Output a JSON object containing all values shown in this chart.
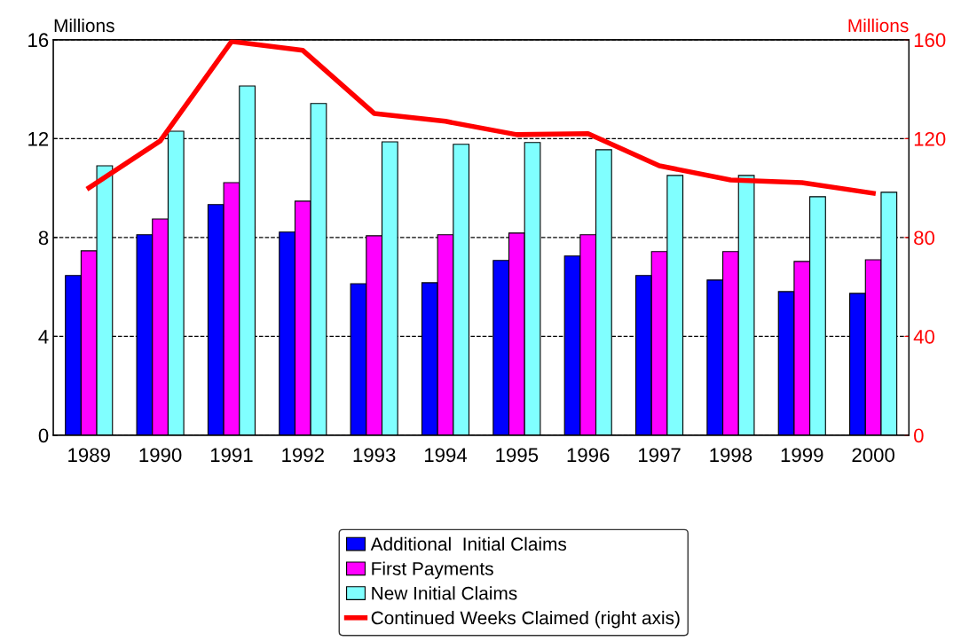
{
  "chart_data": {
    "type": "bar",
    "ylabel": "Millions",
    "y2label": "Millions",
    "categories": [
      "1989",
      "1990",
      "1991",
      "1992",
      "1993",
      "1994",
      "1995",
      "1996",
      "1997",
      "1998",
      "1999",
      "2000"
    ],
    "series": [
      {
        "name": "Additional  Initial Claims",
        "color": "#0000ff",
        "values": [
          6.46,
          8.11,
          9.33,
          8.22,
          6.13,
          6.17,
          7.07,
          7.25,
          6.46,
          6.28,
          5.81,
          5.74
        ]
      },
      {
        "name": "First Payments",
        "color": "#ff00ff",
        "values": [
          7.46,
          8.75,
          10.22,
          9.47,
          8.07,
          8.11,
          8.18,
          8.11,
          7.43,
          7.43,
          7.03,
          7.1
        ]
      },
      {
        "name": "New Initial Claims",
        "color": "#80ffff",
        "values": [
          10.9,
          12.3,
          14.13,
          13.42,
          11.87,
          11.77,
          11.84,
          11.55,
          10.51,
          10.51,
          9.65,
          9.83
        ]
      },
      {
        "name": "Continued Weeks Claimed (right axis)",
        "color": "#ff0000",
        "type": "line",
        "axis": "y2",
        "values": [
          100.1,
          119.1,
          159.3,
          155.7,
          130.2,
          127,
          121.6,
          122,
          109,
          103.3,
          102.2,
          97.9
        ]
      }
    ],
    "ylim": [
      0,
      16
    ],
    "yticks": [
      0,
      4,
      8,
      12,
      16
    ],
    "y2lim": [
      0,
      160
    ],
    "y2ticks": [
      0,
      40,
      80,
      120,
      160
    ],
    "grid": "y",
    "legend": "bottom",
    "marker": "none",
    "line_style": "solid"
  }
}
